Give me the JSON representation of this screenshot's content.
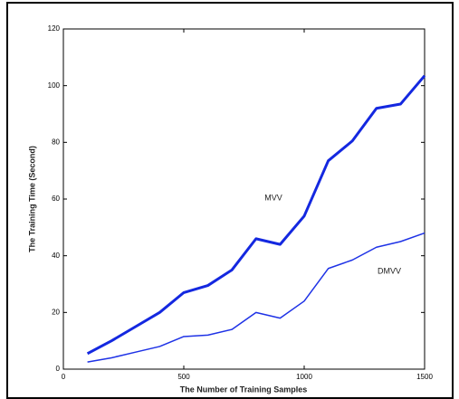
{
  "chart_data": {
    "type": "line",
    "x_label": "The Number of Training Samples",
    "y_label": "The Training Time (Second)",
    "annotations": [
      "MVV",
      "DMVV"
    ],
    "x": [
      100,
      200,
      300,
      400,
      500,
      600,
      700,
      800,
      900,
      1000,
      1100,
      1200,
      1300,
      1400,
      1500
    ],
    "series": [
      {
        "name": "MVV",
        "color": "#1428e0",
        "width": 3,
        "values": [
          5.5,
          10,
          15,
          20,
          27,
          29.5,
          35,
          46,
          44,
          54,
          73.5,
          80.5,
          92,
          93.5,
          103.5
        ]
      },
      {
        "name": "DMVV",
        "color": "#1e32e6",
        "width": 1.5,
        "values": [
          2.5,
          4,
          6,
          8,
          11.5,
          12,
          14,
          20,
          18,
          24,
          35.5,
          38.5,
          43,
          45,
          48
        ]
      }
    ],
    "xlim": [
      0,
      1500
    ],
    "xticks": [
      0,
      500,
      1000,
      1500
    ],
    "ylim": [
      0,
      120
    ],
    "yticks": [
      0,
      20,
      40,
      60,
      80,
      100,
      120
    ]
  }
}
